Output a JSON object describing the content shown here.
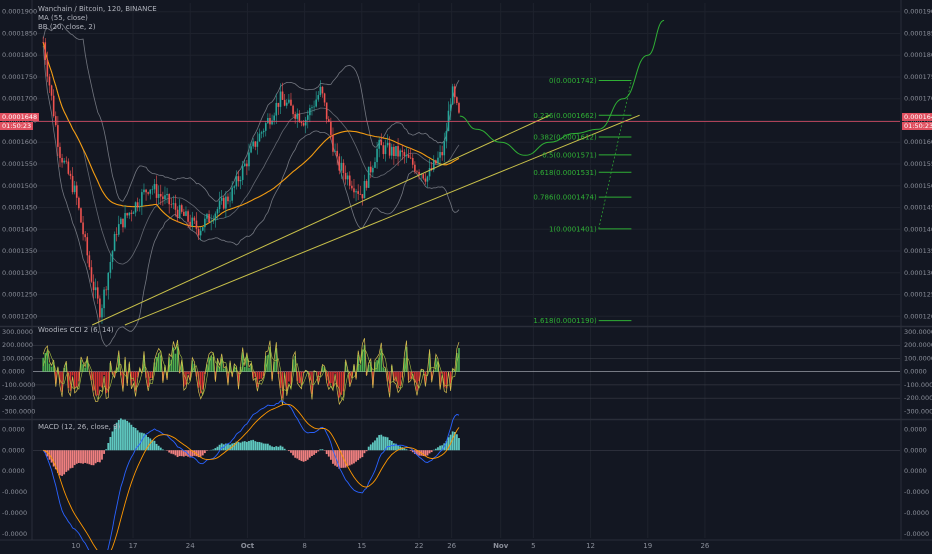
{
  "header": {
    "symbol_line": "Wanchain / Bitcoin, 120, BINANCE",
    "ma_label": "MA (55, close)",
    "bb_label": "BB (20, close, 2)",
    "price_tag": "0.0001648",
    "timer_tag": "01:50:23"
  },
  "cci_label": "Woodies CCI 2 (6, 14)",
  "macd_label": "MACD (12, 26, close, 9)",
  "colors": {
    "background": "#131722",
    "bull": "#26a69a",
    "bear": "#ef5350",
    "ma": "#f39c12",
    "bb": "#b2b5be",
    "trendline": "#c8c04a",
    "projection": "#2fb035",
    "price_line": "#e0506a",
    "macd_line": "#2962ff",
    "signal_line": "#ff9800"
  },
  "chart_data": [
    {
      "type": "candlestick",
      "title": "Wanchain / Bitcoin, 120, BINANCE",
      "y_ticks": [
        "0.0001900",
        "0.0001850",
        "0.0001800",
        "0.0001750",
        "0.0001700",
        "0.0001650",
        "0.0001600",
        "0.0001550",
        "0.0001500",
        "0.0001450",
        "0.0001400",
        "0.0001350",
        "0.0001300",
        "0.0001250",
        "0.0001200"
      ],
      "ylim": [
        0.000118,
        0.000192
      ],
      "x_ticks": [
        "10",
        "17",
        "24",
        "Oct",
        "8",
        "15",
        "22",
        "26",
        "Nov",
        "5",
        "12",
        "19",
        "26"
      ],
      "price_path_key_points": [
        {
          "date": "Sep 6",
          "price": 0.000183
        },
        {
          "date": "Sep 8",
          "price": 0.000158
        },
        {
          "date": "Sep 10",
          "price": 0.000148
        },
        {
          "date": "Sep 12",
          "price": 0.000128
        },
        {
          "date": "Sep 13",
          "price": 0.000121
        },
        {
          "date": "Sep 15",
          "price": 0.00014
        },
        {
          "date": "Sep 19",
          "price": 0.00015
        },
        {
          "date": "Sep 22",
          "price": 0.000145
        },
        {
          "date": "Sep 25",
          "price": 0.00014
        },
        {
          "date": "Sep 29",
          "price": 0.000148
        },
        {
          "date": "Oct 2",
          "price": 0.00016
        },
        {
          "date": "Oct 5",
          "price": 0.00017
        },
        {
          "date": "Oct 8",
          "price": 0.000165
        },
        {
          "date": "Oct 10",
          "price": 0.000172
        },
        {
          "date": "Oct 12",
          "price": 0.000155
        },
        {
          "date": "Oct 15",
          "price": 0.000148
        },
        {
          "date": "Oct 17",
          "price": 0.000159
        },
        {
          "date": "Oct 20",
          "price": 0.000157
        },
        {
          "date": "Oct 23",
          "price": 0.000152
        },
        {
          "date": "Oct 25",
          "price": 0.000158
        },
        {
          "date": "Oct 26",
          "price": 0.000172
        },
        {
          "date": "Oct 27",
          "price": 0.000165
        }
      ],
      "current_price": 0.0001648,
      "fib_levels": [
        {
          "label": "0(0.0001742)",
          "value": 0.0001742
        },
        {
          "label": "0.236(0.0001662)",
          "value": 0.0001662
        },
        {
          "label": "0.382(0.0001612)",
          "value": 0.0001612
        },
        {
          "label": "0.5(0.0001571)",
          "value": 0.0001571
        },
        {
          "label": "0.618(0.0001531)",
          "value": 0.0001531
        },
        {
          "label": "0.786(0.0001474)",
          "value": 0.0001474
        },
        {
          "label": "1(0.0001401)",
          "value": 0.0001401
        },
        {
          "label": "1.618(0.0001190)",
          "value": 0.000119
        }
      ],
      "projection_path": [
        {
          "date": "Oct 27",
          "price": 0.000166
        },
        {
          "date": "Oct 29",
          "price": 0.000163
        },
        {
          "date": "Nov 1",
          "price": 0.00016
        },
        {
          "date": "Nov 4",
          "price": 0.000157
        },
        {
          "date": "Nov 7",
          "price": 0.00016
        },
        {
          "date": "Nov 10",
          "price": 0.000162
        },
        {
          "date": "Nov 13",
          "price": 0.000163
        },
        {
          "date": "Nov 16",
          "price": 0.00017
        },
        {
          "date": "Nov 19",
          "price": 0.00018
        },
        {
          "date": "Nov 21",
          "price": 0.000188
        }
      ]
    },
    {
      "type": "line",
      "title": "Woodies CCI 2 (6, 14)",
      "y_ticks": [
        "300.0000",
        "200.0000",
        "100.0000",
        "0.0000",
        "-100.0000",
        "-200.0000",
        "-300.0000"
      ],
      "ylim": [
        -350,
        330
      ]
    },
    {
      "type": "bar",
      "title": "MACD (12, 26, close, 9)",
      "y_ticks": [
        "0.0000",
        "0.0000",
        "0.0000",
        "-0.0000",
        "-0.0000",
        "-0.0000"
      ],
      "ylim": [
        -4.2,
        1.4
      ]
    }
  ]
}
